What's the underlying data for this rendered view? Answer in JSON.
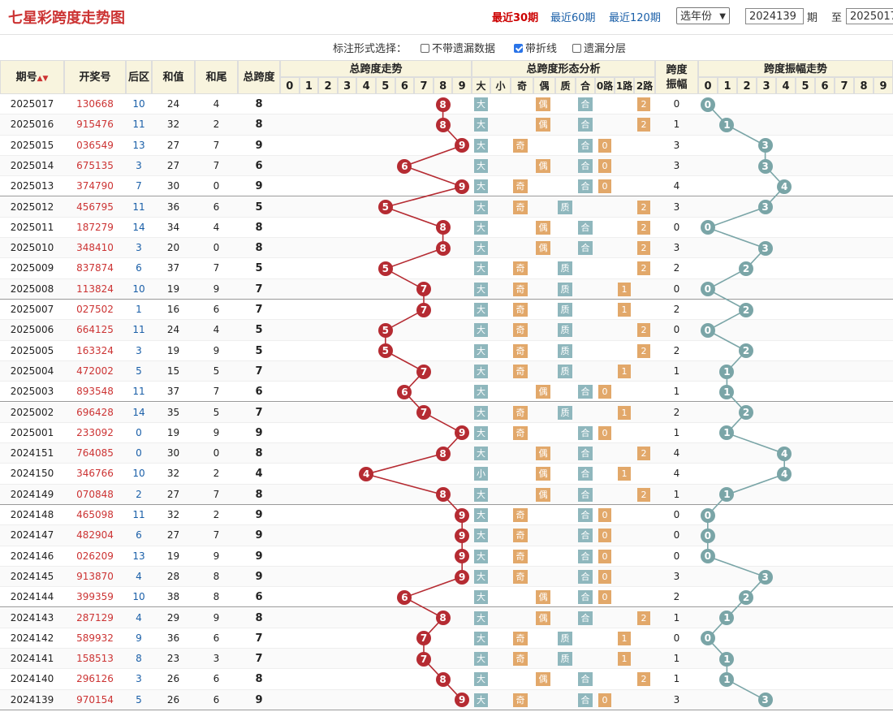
{
  "header": {
    "title": "七星彩跨度走势图",
    "nav": [
      {
        "label": "最近30期",
        "active": true
      },
      {
        "label": "最近60期",
        "active": false
      },
      {
        "label": "最近120期",
        "active": false
      }
    ],
    "year_select": "选年份",
    "from_value": "2024139",
    "from_label": "期",
    "to_label": "至",
    "to_value": "2025017"
  },
  "options": {
    "label": "标注形式选择：",
    "items": [
      {
        "label": "不带遗漏数据",
        "checked": false
      },
      {
        "label": "带折线",
        "checked": true
      },
      {
        "label": "遗漏分层",
        "checked": false
      }
    ]
  },
  "table": {
    "headers": {
      "issue": "期号",
      "draw": "开奖号",
      "rear": "后区",
      "sum": "和值",
      "tail": "和尾",
      "span": "总跨度",
      "trend": "总跨度走势",
      "form": "总跨度形态分析",
      "amp": "跨度",
      "amp2": "振幅",
      "amp_trend": "跨度振幅走势"
    },
    "digits": [
      "0",
      "1",
      "2",
      "3",
      "4",
      "5",
      "6",
      "7",
      "8",
      "9"
    ],
    "form_cols": [
      "大",
      "小",
      "奇",
      "偶",
      "质",
      "合",
      "0路",
      "1路",
      "2路"
    ],
    "rows": [
      {
        "issue": "2025017",
        "draw": "130668",
        "rear": "10",
        "sum": "24",
        "tail": "4",
        "span": 8,
        "amp": 0
      },
      {
        "issue": "2025016",
        "draw": "915476",
        "rear": "11",
        "sum": "32",
        "tail": "2",
        "span": 8,
        "amp": 1
      },
      {
        "issue": "2025015",
        "draw": "036549",
        "rear": "13",
        "sum": "27",
        "tail": "7",
        "span": 9,
        "amp": 3
      },
      {
        "issue": "2025014",
        "draw": "675135",
        "rear": "3",
        "sum": "27",
        "tail": "7",
        "span": 6,
        "amp": 3
      },
      {
        "issue": "2025013",
        "draw": "374790",
        "rear": "7",
        "sum": "30",
        "tail": "0",
        "span": 9,
        "amp": 4
      },
      {
        "issue": "2025012",
        "draw": "456795",
        "rear": "11",
        "sum": "36",
        "tail": "6",
        "span": 5,
        "amp": 3
      },
      {
        "issue": "2025011",
        "draw": "187279",
        "rear": "14",
        "sum": "34",
        "tail": "4",
        "span": 8,
        "amp": 0
      },
      {
        "issue": "2025010",
        "draw": "348410",
        "rear": "3",
        "sum": "20",
        "tail": "0",
        "span": 8,
        "amp": 3
      },
      {
        "issue": "2025009",
        "draw": "837874",
        "rear": "6",
        "sum": "37",
        "tail": "7",
        "span": 5,
        "amp": 2
      },
      {
        "issue": "2025008",
        "draw": "113824",
        "rear": "10",
        "sum": "19",
        "tail": "9",
        "span": 7,
        "amp": 0
      },
      {
        "issue": "2025007",
        "draw": "027502",
        "rear": "1",
        "sum": "16",
        "tail": "6",
        "span": 7,
        "amp": 2
      },
      {
        "issue": "2025006",
        "draw": "664125",
        "rear": "11",
        "sum": "24",
        "tail": "4",
        "span": 5,
        "amp": 0
      },
      {
        "issue": "2025005",
        "draw": "163324",
        "rear": "3",
        "sum": "19",
        "tail": "9",
        "span": 5,
        "amp": 2
      },
      {
        "issue": "2025004",
        "draw": "472002",
        "rear": "5",
        "sum": "15",
        "tail": "5",
        "span": 7,
        "amp": 1
      },
      {
        "issue": "2025003",
        "draw": "893548",
        "rear": "11",
        "sum": "37",
        "tail": "7",
        "span": 6,
        "amp": 1
      },
      {
        "issue": "2025002",
        "draw": "696428",
        "rear": "14",
        "sum": "35",
        "tail": "5",
        "span": 7,
        "amp": 2
      },
      {
        "issue": "2025001",
        "draw": "233092",
        "rear": "0",
        "sum": "19",
        "tail": "9",
        "span": 9,
        "amp": 1
      },
      {
        "issue": "2024151",
        "draw": "764085",
        "rear": "0",
        "sum": "30",
        "tail": "0",
        "span": 8,
        "amp": 4
      },
      {
        "issue": "2024150",
        "draw": "346766",
        "rear": "10",
        "sum": "32",
        "tail": "2",
        "span": 4,
        "amp": 4
      },
      {
        "issue": "2024149",
        "draw": "070848",
        "rear": "2",
        "sum": "27",
        "tail": "7",
        "span": 8,
        "amp": 1
      },
      {
        "issue": "2024148",
        "draw": "465098",
        "rear": "11",
        "sum": "32",
        "tail": "2",
        "span": 9,
        "amp": 0
      },
      {
        "issue": "2024147",
        "draw": "482904",
        "rear": "6",
        "sum": "27",
        "tail": "7",
        "span": 9,
        "amp": 0
      },
      {
        "issue": "2024146",
        "draw": "026209",
        "rear": "13",
        "sum": "19",
        "tail": "9",
        "span": 9,
        "amp": 0
      },
      {
        "issue": "2024145",
        "draw": "913870",
        "rear": "4",
        "sum": "28",
        "tail": "8",
        "span": 9,
        "amp": 3
      },
      {
        "issue": "2024144",
        "draw": "399359",
        "rear": "10",
        "sum": "38",
        "tail": "8",
        "span": 6,
        "amp": 2
      },
      {
        "issue": "2024143",
        "draw": "287129",
        "rear": "4",
        "sum": "29",
        "tail": "9",
        "span": 8,
        "amp": 1
      },
      {
        "issue": "2024142",
        "draw": "589932",
        "rear": "9",
        "sum": "36",
        "tail": "6",
        "span": 7,
        "amp": 0
      },
      {
        "issue": "2024141",
        "draw": "158513",
        "rear": "8",
        "sum": "23",
        "tail": "3",
        "span": 7,
        "amp": 1
      },
      {
        "issue": "2024140",
        "draw": "296126",
        "rear": "3",
        "sum": "26",
        "tail": "6",
        "span": 8,
        "amp": 1
      },
      {
        "issue": "2024139",
        "draw": "970154",
        "rear": "5",
        "sum": "26",
        "tail": "6",
        "span": 9,
        "amp": 3
      }
    ]
  },
  "colors": {
    "accent": "#c33",
    "link": "#1a5fa8",
    "ball": "#b52b32",
    "amp_ball": "#7aa5a7",
    "tag_teal": "#8fb7bd",
    "tag_orange": "#e2a86a",
    "header_bg": "#f8f4de"
  }
}
